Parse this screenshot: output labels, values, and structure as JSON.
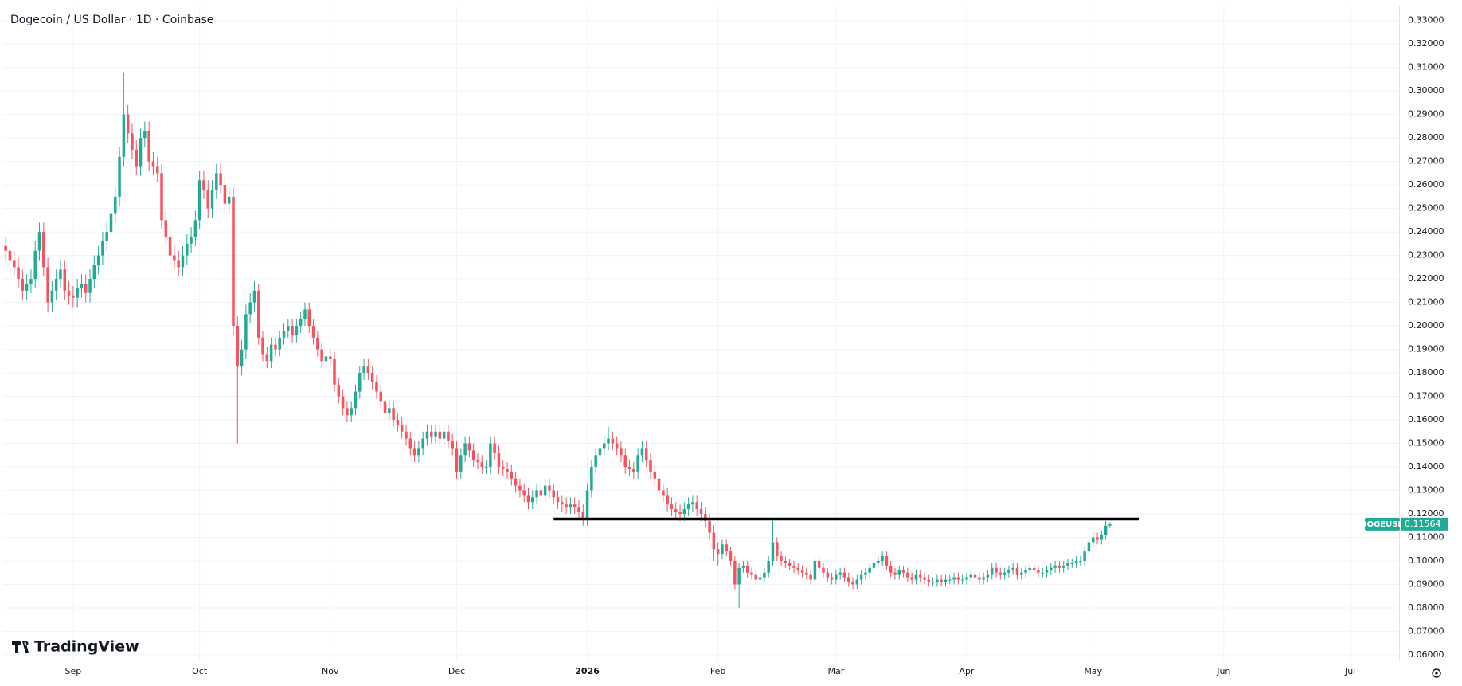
{
  "chart_data": {
    "type": "candlestick",
    "title": "Dogecoin / US Dollar · 1D · Coinbase",
    "brand": "TradingView",
    "up_color": "#22ab94",
    "down_color": "#f7525f",
    "x": [
      0,
      1,
      2,
      3,
      4,
      5,
      6,
      7,
      8,
      9,
      10,
      11,
      12,
      13,
      14,
      15,
      16,
      17,
      18,
      19,
      20,
      21,
      22,
      23,
      24,
      25,
      26,
      27,
      28,
      29,
      30,
      31,
      32,
      33,
      34,
      35,
      36,
      37,
      38,
      39,
      40,
      41,
      42,
      43,
      44,
      45,
      46,
      47,
      48,
      49,
      50,
      51,
      52,
      53,
      54,
      55,
      56,
      57,
      58,
      59,
      60,
      61,
      62,
      63,
      64,
      65,
      66,
      67,
      68,
      69,
      70,
      71,
      72,
      73,
      74,
      75,
      76,
      77,
      78,
      79,
      80,
      81,
      82,
      83,
      84,
      85,
      86,
      87,
      88,
      89,
      90,
      91,
      92,
      93,
      94,
      95,
      96,
      97,
      98,
      99,
      100,
      101,
      102,
      103,
      104,
      105,
      106,
      107,
      108,
      109,
      110,
      111,
      112,
      113,
      114,
      115,
      116,
      117,
      118,
      119,
      120,
      121,
      122,
      123,
      124,
      125,
      126,
      127,
      128,
      129,
      130,
      131,
      132,
      133,
      134,
      135,
      136,
      137,
      138,
      139,
      140,
      141,
      142,
      143,
      144,
      145,
      146,
      147,
      148,
      149,
      150,
      151,
      152,
      153,
      154,
      155,
      156,
      157,
      158,
      159,
      160,
      161,
      162,
      163,
      164,
      165,
      166,
      167,
      168,
      169,
      170,
      171,
      172,
      173,
      174,
      175,
      176,
      177,
      178,
      179,
      180,
      181,
      182,
      183,
      184,
      185,
      186,
      187,
      188,
      189,
      190,
      191,
      192,
      193,
      194,
      195,
      196,
      197,
      198,
      199,
      200,
      201,
      202,
      203,
      204,
      205,
      206,
      207,
      208,
      209,
      210,
      211,
      212,
      213,
      214,
      215,
      216,
      217,
      218,
      219,
      220,
      221,
      222,
      223,
      224,
      225,
      226,
      227,
      228,
      229,
      230,
      231,
      232,
      233,
      234,
      235,
      236,
      237,
      238,
      239,
      240,
      241,
      242,
      243,
      244,
      245,
      246,
      247,
      248,
      249,
      250,
      251,
      252,
      253,
      254,
      255,
      256,
      257,
      258,
      259,
      260,
      261,
      262
    ],
    "open": [
      0.234,
      0.232,
      0.228,
      0.225,
      0.22,
      0.215,
      0.218,
      0.22,
      0.232,
      0.24,
      0.225,
      0.21,
      0.215,
      0.22,
      0.224,
      0.215,
      0.213,
      0.212,
      0.216,
      0.218,
      0.214,
      0.22,
      0.226,
      0.23,
      0.236,
      0.24,
      0.248,
      0.255,
      0.272,
      0.29,
      0.282,
      0.275,
      0.268,
      0.28,
      0.283,
      0.27,
      0.268,
      0.265,
      0.245,
      0.238,
      0.23,
      0.228,
      0.225,
      0.23,
      0.235,
      0.238,
      0.245,
      0.262,
      0.258,
      0.25,
      0.258,
      0.265,
      0.26,
      0.252,
      0.255,
      0.2,
      0.183,
      0.19,
      0.205,
      0.21,
      0.215,
      0.195,
      0.188,
      0.185,
      0.192,
      0.19,
      0.195,
      0.198,
      0.2,
      0.196,
      0.2,
      0.203,
      0.207,
      0.2,
      0.195,
      0.19,
      0.185,
      0.187,
      0.186,
      0.175,
      0.17,
      0.165,
      0.162,
      0.165,
      0.172,
      0.18,
      0.183,
      0.18,
      0.176,
      0.172,
      0.168,
      0.163,
      0.165,
      0.16,
      0.158,
      0.155,
      0.152,
      0.148,
      0.145,
      0.148,
      0.152,
      0.155,
      0.153,
      0.155,
      0.152,
      0.155,
      0.151,
      0.148,
      0.138,
      0.145,
      0.15,
      0.147,
      0.143,
      0.142,
      0.14,
      0.14,
      0.15,
      0.146,
      0.14,
      0.139,
      0.138,
      0.135,
      0.132,
      0.13,
      0.128,
      0.125,
      0.127,
      0.13,
      0.128,
      0.132,
      0.13,
      0.127,
      0.125,
      0.124,
      0.123,
      0.124,
      0.123,
      0.121,
      0.118,
      0.13,
      0.14,
      0.145,
      0.148,
      0.15,
      0.152,
      0.15,
      0.148,
      0.145,
      0.14,
      0.139,
      0.138,
      0.145,
      0.148,
      0.143,
      0.138,
      0.135,
      0.13,
      0.128,
      0.124,
      0.122,
      0.121,
      0.12,
      0.122,
      0.124,
      0.125,
      0.122,
      0.12,
      0.117,
      0.112,
      0.105,
      0.103,
      0.107,
      0.104,
      0.1,
      0.09,
      0.097,
      0.098,
      0.095,
      0.094,
      0.092,
      0.093,
      0.095,
      0.1,
      0.108,
      0.102,
      0.1,
      0.099,
      0.098,
      0.097,
      0.096,
      0.095,
      0.094,
      0.092,
      0.1,
      0.097,
      0.095,
      0.093,
      0.092,
      0.094,
      0.095,
      0.093,
      0.091,
      0.09,
      0.092,
      0.094,
      0.095,
      0.097,
      0.099,
      0.1,
      0.102,
      0.098,
      0.095,
      0.094,
      0.096,
      0.095,
      0.093,
      0.092,
      0.094,
      0.093,
      0.092,
      0.091,
      0.091,
      0.092,
      0.091,
      0.092,
      0.092,
      0.093,
      0.092,
      0.092,
      0.093,
      0.094,
      0.093,
      0.092,
      0.093,
      0.094,
      0.097,
      0.095,
      0.094,
      0.095,
      0.096,
      0.097,
      0.094,
      0.095,
      0.096,
      0.097,
      0.096,
      0.095,
      0.095,
      0.096,
      0.097,
      0.098,
      0.097,
      0.098,
      0.099,
      0.099,
      0.1,
      0.1,
      0.104,
      0.108,
      0.11,
      0.109,
      0.111,
      0.115
    ],
    "high": [
      0.238,
      0.236,
      0.232,
      0.229,
      0.224,
      0.222,
      0.224,
      0.236,
      0.244,
      0.244,
      0.229,
      0.219,
      0.224,
      0.228,
      0.228,
      0.219,
      0.217,
      0.22,
      0.222,
      0.222,
      0.224,
      0.23,
      0.234,
      0.24,
      0.244,
      0.252,
      0.259,
      0.276,
      0.308,
      0.294,
      0.286,
      0.279,
      0.284,
      0.287,
      0.287,
      0.274,
      0.272,
      0.269,
      0.249,
      0.242,
      0.234,
      0.232,
      0.234,
      0.239,
      0.242,
      0.249,
      0.266,
      0.266,
      0.262,
      0.262,
      0.269,
      0.269,
      0.264,
      0.259,
      0.259,
      0.204,
      0.194,
      0.209,
      0.214,
      0.219,
      0.218,
      0.198,
      0.191,
      0.195,
      0.195,
      0.198,
      0.201,
      0.203,
      0.203,
      0.203,
      0.206,
      0.21,
      0.21,
      0.203,
      0.198,
      0.193,
      0.19,
      0.19,
      0.189,
      0.178,
      0.173,
      0.168,
      0.168,
      0.175,
      0.183,
      0.186,
      0.186,
      0.183,
      0.179,
      0.175,
      0.171,
      0.168,
      0.168,
      0.163,
      0.161,
      0.158,
      0.155,
      0.151,
      0.151,
      0.155,
      0.158,
      0.158,
      0.158,
      0.158,
      0.158,
      0.158,
      0.154,
      0.151,
      0.148,
      0.153,
      0.153,
      0.15,
      0.146,
      0.145,
      0.143,
      0.153,
      0.153,
      0.149,
      0.143,
      0.142,
      0.141,
      0.138,
      0.135,
      0.133,
      0.131,
      0.13,
      0.133,
      0.133,
      0.135,
      0.135,
      0.133,
      0.13,
      0.128,
      0.127,
      0.127,
      0.127,
      0.126,
      0.124,
      0.133,
      0.143,
      0.148,
      0.151,
      0.153,
      0.157,
      0.155,
      0.153,
      0.151,
      0.148,
      0.143,
      0.142,
      0.148,
      0.151,
      0.151,
      0.146,
      0.141,
      0.138,
      0.133,
      0.131,
      0.127,
      0.125,
      0.124,
      0.125,
      0.127,
      0.128,
      0.128,
      0.125,
      0.123,
      0.12,
      0.115,
      0.108,
      0.109,
      0.109,
      0.106,
      0.102,
      0.099,
      0.1,
      0.1,
      0.097,
      0.096,
      0.095,
      0.097,
      0.102,
      0.117,
      0.11,
      0.104,
      0.102,
      0.101,
      0.1,
      0.099,
      0.098,
      0.097,
      0.096,
      0.102,
      0.102,
      0.099,
      0.097,
      0.095,
      0.096,
      0.097,
      0.097,
      0.095,
      0.093,
      0.094,
      0.096,
      0.097,
      0.099,
      0.101,
      0.102,
      0.104,
      0.104,
      0.1,
      0.097,
      0.098,
      0.098,
      0.097,
      0.095,
      0.096,
      0.096,
      0.095,
      0.094,
      0.093,
      0.094,
      0.094,
      0.094,
      0.094,
      0.095,
      0.095,
      0.094,
      0.095,
      0.096,
      0.096,
      0.095,
      0.095,
      0.096,
      0.099,
      0.099,
      0.097,
      0.097,
      0.098,
      0.099,
      0.099,
      0.097,
      0.098,
      0.099,
      0.099,
      0.098,
      0.097,
      0.098,
      0.099,
      0.1,
      0.1,
      0.1,
      0.101,
      0.101,
      0.102,
      0.102,
      0.106,
      0.11,
      0.112,
      0.112,
      0.113,
      0.117,
      0.1165
    ],
    "low": [
      0.228,
      0.224,
      0.221,
      0.216,
      0.211,
      0.211,
      0.214,
      0.216,
      0.228,
      0.221,
      0.206,
      0.206,
      0.211,
      0.216,
      0.211,
      0.209,
      0.208,
      0.208,
      0.212,
      0.21,
      0.21,
      0.216,
      0.222,
      0.226,
      0.232,
      0.236,
      0.244,
      0.251,
      0.268,
      0.278,
      0.271,
      0.264,
      0.264,
      0.276,
      0.266,
      0.264,
      0.261,
      0.241,
      0.234,
      0.226,
      0.224,
      0.221,
      0.221,
      0.226,
      0.231,
      0.234,
      0.241,
      0.254,
      0.246,
      0.246,
      0.254,
      0.256,
      0.248,
      0.248,
      0.196,
      0.15,
      0.179,
      0.186,
      0.201,
      0.206,
      0.192,
      0.185,
      0.182,
      0.182,
      0.187,
      0.187,
      0.192,
      0.195,
      0.193,
      0.193,
      0.197,
      0.2,
      0.197,
      0.192,
      0.187,
      0.182,
      0.182,
      0.183,
      0.172,
      0.167,
      0.162,
      0.159,
      0.159,
      0.162,
      0.169,
      0.177,
      0.177,
      0.173,
      0.169,
      0.165,
      0.16,
      0.16,
      0.157,
      0.155,
      0.152,
      0.149,
      0.145,
      0.142,
      0.142,
      0.145,
      0.149,
      0.15,
      0.15,
      0.149,
      0.149,
      0.148,
      0.145,
      0.135,
      0.135,
      0.142,
      0.144,
      0.14,
      0.139,
      0.137,
      0.137,
      0.137,
      0.143,
      0.137,
      0.136,
      0.135,
      0.132,
      0.129,
      0.127,
      0.125,
      0.122,
      0.122,
      0.124,
      0.125,
      0.125,
      0.127,
      0.124,
      0.122,
      0.121,
      0.12,
      0.12,
      0.12,
      0.118,
      0.115,
      0.115,
      0.127,
      0.137,
      0.142,
      0.145,
      0.147,
      0.147,
      0.145,
      0.142,
      0.137,
      0.136,
      0.135,
      0.135,
      0.142,
      0.14,
      0.135,
      0.132,
      0.127,
      0.125,
      0.121,
      0.119,
      0.118,
      0.117,
      0.117,
      0.119,
      0.121,
      0.119,
      0.117,
      0.114,
      0.109,
      0.1,
      0.098,
      0.101,
      0.102,
      0.098,
      0.088,
      0.08,
      0.095,
      0.093,
      0.092,
      0.09,
      0.09,
      0.091,
      0.093,
      0.098,
      0.1,
      0.098,
      0.097,
      0.096,
      0.095,
      0.094,
      0.093,
      0.092,
      0.09,
      0.09,
      0.095,
      0.093,
      0.091,
      0.09,
      0.09,
      0.092,
      0.091,
      0.089,
      0.088,
      0.088,
      0.09,
      0.092,
      0.093,
      0.095,
      0.097,
      0.098,
      0.096,
      0.093,
      0.092,
      0.092,
      0.093,
      0.091,
      0.09,
      0.09,
      0.091,
      0.09,
      0.089,
      0.089,
      0.089,
      0.089,
      0.089,
      0.09,
      0.09,
      0.09,
      0.09,
      0.09,
      0.091,
      0.091,
      0.09,
      0.09,
      0.091,
      0.092,
      0.093,
      0.092,
      0.092,
      0.093,
      0.094,
      0.092,
      0.092,
      0.093,
      0.094,
      0.094,
      0.093,
      0.093,
      0.093,
      0.094,
      0.095,
      0.095,
      0.095,
      0.096,
      0.097,
      0.097,
      0.098,
      0.098,
      0.102,
      0.106,
      0.107,
      0.107,
      0.109,
      0.114
    ],
    "close": [
      0.232,
      0.228,
      0.225,
      0.22,
      0.215,
      0.218,
      0.22,
      0.232,
      0.24,
      0.225,
      0.21,
      0.215,
      0.22,
      0.224,
      0.215,
      0.213,
      0.212,
      0.216,
      0.218,
      0.214,
      0.22,
      0.226,
      0.23,
      0.236,
      0.24,
      0.248,
      0.255,
      0.272,
      0.29,
      0.282,
      0.275,
      0.268,
      0.28,
      0.283,
      0.27,
      0.268,
      0.265,
      0.245,
      0.238,
      0.23,
      0.228,
      0.225,
      0.23,
      0.235,
      0.238,
      0.245,
      0.262,
      0.258,
      0.25,
      0.258,
      0.265,
      0.26,
      0.252,
      0.255,
      0.2,
      0.183,
      0.19,
      0.205,
      0.21,
      0.215,
      0.195,
      0.188,
      0.185,
      0.192,
      0.19,
      0.195,
      0.198,
      0.2,
      0.196,
      0.2,
      0.203,
      0.207,
      0.2,
      0.195,
      0.19,
      0.185,
      0.187,
      0.186,
      0.175,
      0.17,
      0.165,
      0.162,
      0.165,
      0.172,
      0.18,
      0.183,
      0.18,
      0.176,
      0.172,
      0.168,
      0.163,
      0.165,
      0.16,
      0.158,
      0.155,
      0.152,
      0.148,
      0.145,
      0.148,
      0.152,
      0.155,
      0.153,
      0.155,
      0.152,
      0.155,
      0.151,
      0.148,
      0.138,
      0.145,
      0.15,
      0.147,
      0.143,
      0.142,
      0.14,
      0.14,
      0.15,
      0.146,
      0.14,
      0.139,
      0.138,
      0.135,
      0.132,
      0.13,
      0.128,
      0.125,
      0.127,
      0.13,
      0.128,
      0.132,
      0.13,
      0.127,
      0.125,
      0.124,
      0.123,
      0.124,
      0.123,
      0.121,
      0.118,
      0.13,
      0.14,
      0.145,
      0.148,
      0.15,
      0.152,
      0.15,
      0.148,
      0.145,
      0.14,
      0.139,
      0.138,
      0.145,
      0.148,
      0.143,
      0.138,
      0.135,
      0.13,
      0.128,
      0.124,
      0.122,
      0.121,
      0.12,
      0.122,
      0.124,
      0.125,
      0.122,
      0.12,
      0.117,
      0.112,
      0.105,
      0.103,
      0.107,
      0.104,
      0.1,
      0.09,
      0.097,
      0.098,
      0.095,
      0.094,
      0.092,
      0.093,
      0.095,
      0.1,
      0.108,
      0.102,
      0.1,
      0.099,
      0.098,
      0.097,
      0.096,
      0.095,
      0.094,
      0.092,
      0.1,
      0.097,
      0.095,
      0.093,
      0.092,
      0.094,
      0.095,
      0.093,
      0.091,
      0.09,
      0.092,
      0.094,
      0.095,
      0.097,
      0.099,
      0.1,
      0.102,
      0.098,
      0.095,
      0.094,
      0.096,
      0.095,
      0.093,
      0.092,
      0.094,
      0.093,
      0.092,
      0.091,
      0.091,
      0.092,
      0.091,
      0.092,
      0.092,
      0.093,
      0.092,
      0.092,
      0.093,
      0.094,
      0.093,
      0.092,
      0.093,
      0.094,
      0.097,
      0.095,
      0.094,
      0.095,
      0.096,
      0.097,
      0.094,
      0.095,
      0.096,
      0.097,
      0.096,
      0.095,
      0.095,
      0.096,
      0.097,
      0.098,
      0.097,
      0.098,
      0.099,
      0.099,
      0.1,
      0.1,
      0.104,
      0.108,
      0.11,
      0.109,
      0.111,
      0.115,
      0.1156
    ],
    "hline": {
      "value": 0.1178,
      "x": [
        130,
        269
      ],
      "color": "#000000"
    },
    "price_label": {
      "symbol": "DOGEUSD",
      "value": 0.11564
    },
    "xlim": [
      -0.6,
      330.6
    ],
    "xticks": [
      {
        "value": 16,
        "label": "Sep"
      },
      {
        "value": 46,
        "label": "Oct"
      },
      {
        "value": 77,
        "label": "Nov"
      },
      {
        "value": 107,
        "label": "Dec"
      },
      {
        "value": 138,
        "label": "2026"
      },
      {
        "value": 169,
        "label": "Feb"
      },
      {
        "value": 197,
        "label": "Mar"
      },
      {
        "value": 228,
        "label": "Apr"
      },
      {
        "value": 258,
        "label": "May"
      },
      {
        "value": 289,
        "label": "Jun"
      },
      {
        "value": 319,
        "label": "Jul"
      }
    ],
    "ylim": [
      0.0576,
      0.336
    ],
    "yticks": [
      {
        "value": 0.06,
        "label": "0.06000"
      },
      {
        "value": 0.07,
        "label": "0.07000"
      },
      {
        "value": 0.08,
        "label": "0.08000"
      },
      {
        "value": 0.09,
        "label": "0.09000"
      },
      {
        "value": 0.1,
        "label": "0.10000"
      },
      {
        "value": 0.11,
        "label": "0.11000"
      },
      {
        "value": 0.12,
        "label": "0.12000"
      },
      {
        "value": 0.13,
        "label": "0.13000"
      },
      {
        "value": 0.14,
        "label": "0.14000"
      },
      {
        "value": 0.15,
        "label": "0.15000"
      },
      {
        "value": 0.16,
        "label": "0.16000"
      },
      {
        "value": 0.17,
        "label": "0.17000"
      },
      {
        "value": 0.18,
        "label": "0.18000"
      },
      {
        "value": 0.19,
        "label": "0.19000"
      },
      {
        "value": 0.2,
        "label": "0.20000"
      },
      {
        "value": 0.21,
        "label": "0.21000"
      },
      {
        "value": 0.22,
        "label": "0.22000"
      },
      {
        "value": 0.23,
        "label": "0.23000"
      },
      {
        "value": 0.24,
        "label": "0.24000"
      },
      {
        "value": 0.25,
        "label": "0.25000"
      },
      {
        "value": 0.26,
        "label": "0.26000"
      },
      {
        "value": 0.27,
        "label": "0.27000"
      },
      {
        "value": 0.28,
        "label": "0.28000"
      },
      {
        "value": 0.29,
        "label": "0.29000"
      },
      {
        "value": 0.3,
        "label": "0.30000"
      },
      {
        "value": 0.31,
        "label": "0.31000"
      },
      {
        "value": 0.32,
        "label": "0.32000"
      },
      {
        "value": 0.33,
        "label": "0.33000"
      }
    ],
    "grid": true
  }
}
